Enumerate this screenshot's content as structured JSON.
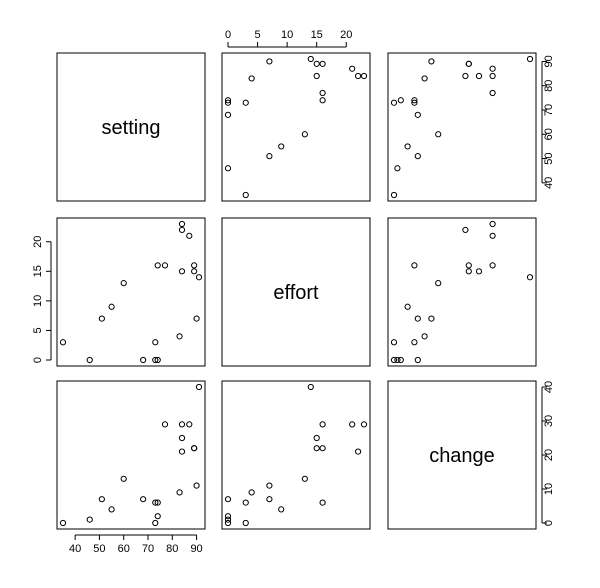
{
  "chart_data": {
    "type": "scatter",
    "subtype": "pairs",
    "variables": [
      {
        "name": "setting",
        "lim": [
          35,
          91
        ],
        "ticks": [
          40,
          50,
          60,
          70,
          80,
          90
        ],
        "tick_labels": [
          "40",
          "50",
          "60",
          "70",
          "80",
          "90"
        ]
      },
      {
        "name": "effort",
        "lim": [
          0,
          23
        ],
        "ticks": [
          0,
          5,
          10,
          15,
          20
        ],
        "tick_labels": [
          "0",
          "5",
          "10",
          "15",
          "20"
        ]
      },
      {
        "name": "change",
        "lim": [
          0,
          40
        ],
        "ticks": [
          0,
          10,
          20,
          30,
          40
        ],
        "tick_labels": [
          "0",
          "10",
          "20",
          "30",
          "40"
        ]
      }
    ],
    "observations": {
      "setting": [
        46,
        74,
        35,
        83,
        68,
        74,
        89,
        87,
        51,
        90,
        84,
        89,
        77,
        84,
        73,
        55,
        73,
        84,
        91,
        60
      ],
      "effort": [
        0,
        0,
        3,
        4,
        0,
        16,
        16,
        21,
        7,
        7,
        15,
        15,
        16,
        22,
        3,
        9,
        0,
        23,
        14,
        13
      ],
      "change": [
        1,
        2,
        0,
        9,
        7,
        6,
        22,
        29,
        7,
        11,
        25,
        22,
        29,
        21,
        6,
        4,
        0,
        29,
        40,
        13
      ]
    },
    "grid": false,
    "legend": "none"
  }
}
